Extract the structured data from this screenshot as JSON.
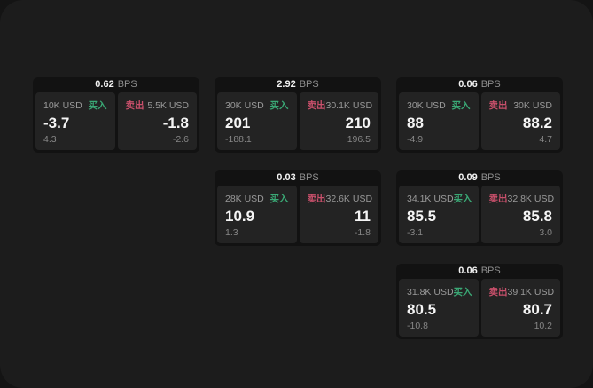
{
  "window": {
    "outer_bg": "#141414",
    "app_bg": "#1c1c1c",
    "card_bg": "#121212",
    "panel_bg": "#232323",
    "buy_color": "#3aa875",
    "sell_color": "#c9506b"
  },
  "labels": {
    "bps": "BPS",
    "buy": "买入",
    "sell": "卖出"
  },
  "cards": [
    {
      "bps_value": "0.62",
      "bps_label": "BPS",
      "buy": {
        "amount": "10K USD",
        "side": "买入",
        "price": "-3.7",
        "delta": "4.3"
      },
      "sell": {
        "side": "卖出",
        "amount": "5.5K USD",
        "price": "-1.8",
        "delta": "-2.6"
      }
    },
    {
      "bps_value": "2.92",
      "bps_label": "BPS",
      "buy": {
        "amount": "30K USD",
        "side": "买入",
        "price": "201",
        "delta": "-188.1"
      },
      "sell": {
        "side": "卖出",
        "amount": "30.1K USD",
        "price": "210",
        "delta": "196.5"
      }
    },
    {
      "bps_value": "0.06",
      "bps_label": "BPS",
      "buy": {
        "amount": "30K USD",
        "side": "买入",
        "price": "88",
        "delta": "-4.9"
      },
      "sell": {
        "side": "卖出",
        "amount": "30K USD",
        "price": "88.2",
        "delta": "4.7"
      }
    },
    {
      "bps_value": "0.03",
      "bps_label": "BPS",
      "buy": {
        "amount": "28K USD",
        "side": "买入",
        "price": "10.9",
        "delta": "1.3"
      },
      "sell": {
        "side": "卖出",
        "amount": "32.6K USD",
        "price": "11",
        "delta": "-1.8"
      }
    },
    {
      "bps_value": "0.09",
      "bps_label": "BPS",
      "buy": {
        "amount": "34.1K USD",
        "side": "买入",
        "price": "85.5",
        "delta": "-3.1"
      },
      "sell": {
        "side": "卖出",
        "amount": "32.8K USD",
        "price": "85.8",
        "delta": "3.0"
      }
    },
    {
      "bps_value": "0.06",
      "bps_label": "BPS",
      "buy": {
        "amount": "31.8K USD",
        "side": "买入",
        "price": "80.5",
        "delta": "-10.8"
      },
      "sell": {
        "side": "卖出",
        "amount": "39.1K USD",
        "price": "80.7",
        "delta": "10.2"
      }
    }
  ]
}
